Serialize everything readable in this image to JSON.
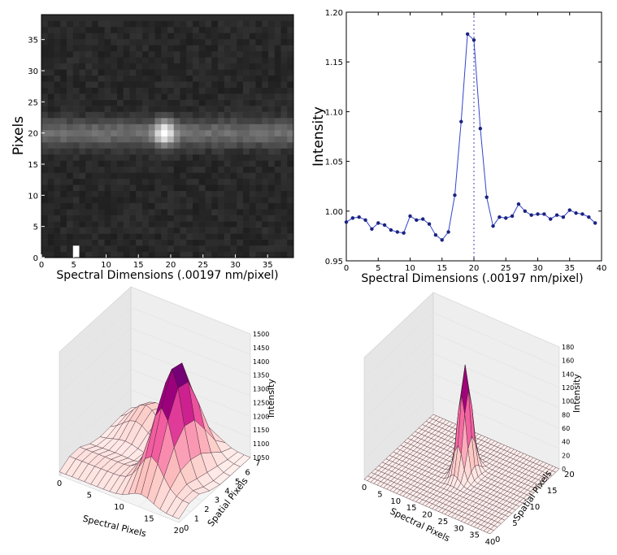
{
  "chart_data": [
    {
      "type": "heatmap",
      "xlabel": "Spectral Dimensions (.00197 nm/pixel)",
      "ylabel": "Pixels",
      "xlim": [
        0,
        39
      ],
      "ylim": [
        0,
        39
      ],
      "xticks": [
        0,
        5,
        10,
        15,
        20,
        25,
        30,
        35
      ],
      "yticks": [
        0,
        5,
        10,
        15,
        20,
        25,
        30,
        35
      ],
      "band_center_row": 20,
      "spot_center": [
        19,
        20
      ],
      "hot_pixel": [
        5,
        0
      ],
      "colormap": "gray"
    },
    {
      "type": "line",
      "xlabel": "Spectral Dimensions (.00197 nm/pixel)",
      "ylabel": "Intensity",
      "xlim": [
        0,
        40
      ],
      "ylim": [
        0.95,
        1.2
      ],
      "xticks": [
        0,
        5,
        10,
        15,
        20,
        25,
        30,
        35,
        40
      ],
      "yticks": [
        "0.95",
        "1.00",
        "1.05",
        "1.10",
        "1.15",
        "1.20"
      ],
      "vline_x": 20,
      "x": [
        0,
        1,
        2,
        3,
        4,
        5,
        6,
        7,
        8,
        9,
        10,
        11,
        12,
        13,
        14,
        15,
        16,
        17,
        18,
        19,
        20,
        21,
        22,
        23,
        24,
        25,
        26,
        27,
        28,
        29,
        30,
        31,
        32,
        33,
        34,
        35,
        36,
        37,
        38,
        39
      ],
      "y": [
        0.989,
        0.993,
        0.994,
        0.991,
        0.982,
        0.988,
        0.986,
        0.981,
        0.979,
        0.978,
        0.995,
        0.991,
        0.992,
        0.987,
        0.976,
        0.971,
        0.979,
        1.016,
        1.09,
        1.178,
        1.172,
        1.083,
        1.014,
        0.985,
        0.994,
        0.993,
        0.995,
        1.007,
        1.0,
        0.996,
        0.997,
        0.997,
        0.992,
        0.996,
        0.994,
        1.001,
        0.998,
        0.997,
        0.994,
        0.988
      ]
    },
    {
      "type": "surface3d",
      "xlabel": "Spectral Pixels",
      "ylabel": "Spatial Pixels",
      "zlabel": "Intensity",
      "xticks": [
        "0",
        "5",
        "10",
        "15",
        "20"
      ],
      "yticks": [
        "0",
        "1",
        "2",
        "3",
        "4",
        "5",
        "6",
        "7"
      ],
      "zticks": [
        "1050",
        "1100",
        "1150",
        "1200",
        "1250",
        "1300",
        "1350",
        "1400",
        "1450",
        "1500"
      ],
      "zlim": [
        1050,
        1500
      ],
      "grid_size": [
        20,
        8
      ],
      "peak_spectral": 13,
      "peak_spatial": 3.5,
      "peak_value": 1460,
      "colormap": "RdPu"
    },
    {
      "type": "surface3d",
      "xlabel": "Spectral Pixels",
      "ylabel": "Spatial Pixels",
      "zlabel": "Intensity",
      "xticks": [
        "0",
        "5",
        "10",
        "15",
        "20",
        "25",
        "30",
        "35",
        "40"
      ],
      "yticks": [
        "0",
        "5",
        "10",
        "15",
        "20"
      ],
      "zticks": [
        "0",
        "20",
        "40",
        "60",
        "80",
        "100",
        "120",
        "140",
        "160",
        "180"
      ],
      "zlim": [
        0,
        180
      ],
      "grid_size": [
        40,
        20
      ],
      "peak_spectral": 20,
      "peak_spatial": 10,
      "peak_value": 160,
      "colormap": "RdPu"
    }
  ]
}
